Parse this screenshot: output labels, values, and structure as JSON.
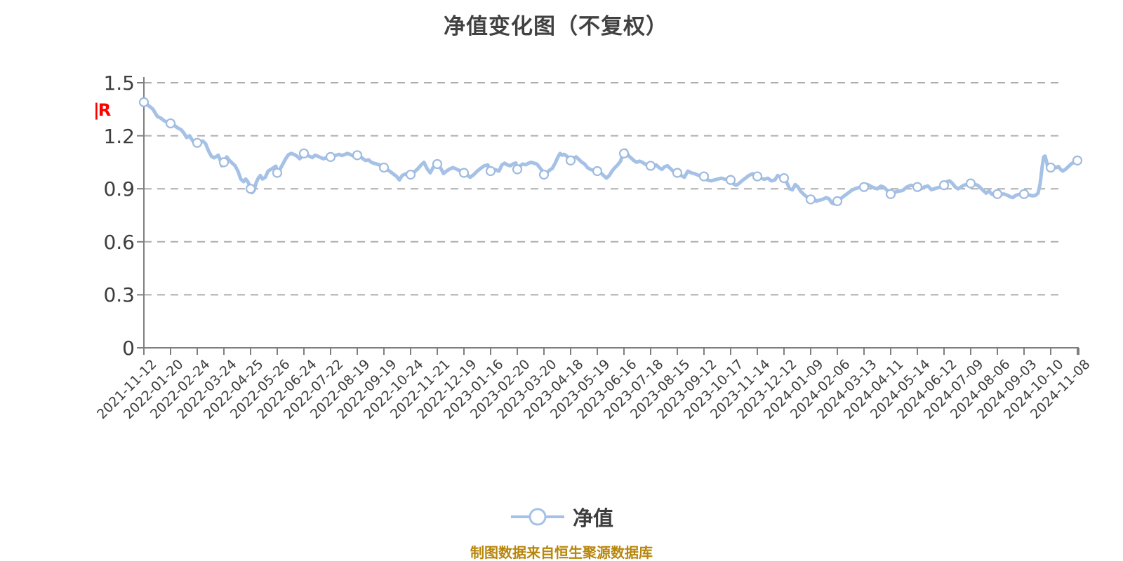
{
  "title": "净值变化图（不复权）",
  "red_mark": "|R",
  "legend": {
    "label": "净值"
  },
  "footer": "制图数据来自恒生聚源数据库",
  "colors": {
    "line": "#a6c1e6",
    "marker_fill": "#ffffff",
    "marker_stroke": "#9fbbdf",
    "grid": "#adadad",
    "axis": "#7f7f7f",
    "text": "#3d3d3d",
    "title": "#414141",
    "footer": "#b8860b",
    "red_mark": "#ff0000"
  },
  "chart_data": {
    "type": "line",
    "title": "净值变化图（不复权）",
    "series_name": "净值",
    "legend_position": "bottom center",
    "grid": "horizontal dashed",
    "ylim": [
      0,
      1.5
    ],
    "y_ticks": [
      1.5,
      1.2,
      0.9,
      0.6,
      0.3,
      0
    ],
    "y_tick_labels": [
      "1.5",
      "1.2",
      "0.9",
      "0.6",
      "0.3",
      "0"
    ],
    "x_labels": [
      "2021-11-12",
      "2022-01-20",
      "2022-02-24",
      "2022-03-24",
      "2022-04-25",
      "2022-05-26",
      "2022-06-24",
      "2022-07-22",
      "2022-08-19",
      "2022-09-19",
      "2022-10-24",
      "2022-11-21",
      "2022-12-19",
      "2023-01-16",
      "2023-02-20",
      "2023-03-20",
      "2023-04-18",
      "2023-05-19",
      "2023-06-16",
      "2023-07-18",
      "2023-08-15",
      "2023-09-12",
      "2023-10-17",
      "2023-11-14",
      "2023-12-12",
      "2024-01-09",
      "2024-02-06",
      "2024-03-13",
      "2024-04-11",
      "2024-05-14",
      "2024-06-12",
      "2024-07-09",
      "2024-08-06",
      "2024-09-03",
      "2024-10-10",
      "2024-11-08"
    ],
    "marker_values": [
      1.39,
      1.27,
      1.16,
      1.05,
      0.9,
      0.99,
      1.1,
      1.08,
      1.09,
      1.02,
      0.98,
      1.04,
      0.99,
      1.0,
      1.01,
      0.98,
      1.06,
      1.0,
      1.1,
      1.03,
      0.99,
      0.97,
      0.95,
      0.97,
      0.96,
      0.84,
      0.83,
      0.91,
      0.87,
      0.91,
      0.92,
      0.93,
      0.87,
      0.87,
      1.02,
      1.06
    ],
    "dense_points": [
      [
        205,
        1.39
      ],
      [
        212,
        1.37
      ],
      [
        218,
        1.35
      ],
      [
        224,
        1.31
      ],
      [
        229,
        1.3
      ],
      [
        234,
        1.285
      ],
      [
        239,
        1.275
      ],
      [
        243,
        1.27
      ],
      [
        248,
        1.26
      ],
      [
        253,
        1.245
      ],
      [
        258,
        1.235
      ],
      [
        262,
        1.215
      ],
      [
        266,
        1.19
      ],
      [
        270,
        1.2
      ],
      [
        274,
        1.175
      ],
      [
        278,
        1.155
      ],
      [
        281,
        1.16
      ],
      [
        285,
        1.165
      ],
      [
        289,
        1.17
      ],
      [
        293,
        1.155
      ],
      [
        297,
        1.115
      ],
      [
        301,
        1.085
      ],
      [
        305,
        1.075
      ],
      [
        308,
        1.082
      ],
      [
        311,
        1.09
      ],
      [
        314,
        1.06
      ],
      [
        316,
        1.03
      ],
      [
        319,
        1.05
      ],
      [
        323,
        1.08
      ],
      [
        327,
        1.06
      ],
      [
        331,
        1.045
      ],
      [
        335,
        1.03
      ],
      [
        339,
        1.0
      ],
      [
        343,
        0.955
      ],
      [
        347,
        0.94
      ],
      [
        350,
        0.955
      ],
      [
        353,
        0.94
      ],
      [
        355,
        0.925
      ],
      [
        357,
        0.9
      ],
      [
        359,
        0.878
      ],
      [
        362,
        0.89
      ],
      [
        365,
        0.935
      ],
      [
        368,
        0.96
      ],
      [
        371,
        0.975
      ],
      [
        374,
        0.955
      ],
      [
        378,
        0.965
      ],
      [
        382,
        1.0
      ],
      [
        386,
        1.01
      ],
      [
        390,
        1.02
      ],
      [
        393,
        1.028
      ],
      [
        395,
        0.99
      ],
      [
        399,
        1.012
      ],
      [
        403,
        1.04
      ],
      [
        407,
        1.07
      ],
      [
        411,
        1.093
      ],
      [
        415,
        1.1
      ],
      [
        419,
        1.094
      ],
      [
        423,
        1.085
      ],
      [
        427,
        1.07
      ],
      [
        430,
        1.082
      ],
      [
        433,
        1.1
      ],
      [
        437,
        1.09
      ],
      [
        441,
        1.084
      ],
      [
        445,
        1.076
      ],
      [
        449,
        1.09
      ],
      [
        453,
        1.084
      ],
      [
        457,
        1.076
      ],
      [
        461,
        1.07
      ],
      [
        465,
        1.076
      ],
      [
        468,
        1.08
      ],
      [
        471,
        1.08
      ],
      [
        475,
        1.086
      ],
      [
        479,
        1.09
      ],
      [
        483,
        1.095
      ],
      [
        487,
        1.088
      ],
      [
        491,
        1.094
      ],
      [
        495,
        1.1
      ],
      [
        499,
        1.094
      ],
      [
        503,
        1.086
      ],
      [
        506,
        1.08
      ],
      [
        509,
        1.09
      ],
      [
        513,
        1.084
      ],
      [
        517,
        1.07
      ],
      [
        521,
        1.06
      ],
      [
        525,
        1.064
      ],
      [
        529,
        1.05
      ],
      [
        533,
        1.044
      ],
      [
        537,
        1.04
      ],
      [
        541,
        1.034
      ],
      [
        545,
        1.025
      ],
      [
        547,
        1.02
      ],
      [
        551,
        1.01
      ],
      [
        555,
        1.0
      ],
      [
        560,
        0.985
      ],
      [
        565,
        0.97
      ],
      [
        569,
        0.95
      ],
      [
        573,
        0.975
      ],
      [
        578,
        0.985
      ],
      [
        581,
        0.98
      ],
      [
        585,
        0.98
      ],
      [
        590,
        0.995
      ],
      [
        595,
        1.012
      ],
      [
        600,
        1.035
      ],
      [
        604,
        1.05
      ],
      [
        609,
        1.01
      ],
      [
        613,
        0.99
      ],
      [
        617,
        1.02
      ],
      [
        621,
        1.048
      ],
      [
        623,
        1.04
      ],
      [
        628,
        1.015
      ],
      [
        632,
        0.986
      ],
      [
        636,
        1.0
      ],
      [
        640,
        1.01
      ],
      [
        645,
        1.02
      ],
      [
        649,
        1.014
      ],
      [
        653,
        1.006
      ],
      [
        657,
        1.0
      ],
      [
        661,
        0.99
      ],
      [
        666,
        0.976
      ],
      [
        670,
        0.965
      ],
      [
        675,
        0.98
      ],
      [
        680,
        1.0
      ],
      [
        685,
        1.016
      ],
      [
        690,
        1.03
      ],
      [
        695,
        1.035
      ],
      [
        699,
        1.0
      ],
      [
        703,
        1.012
      ],
      [
        707,
        1.006
      ],
      [
        711,
        1.0
      ],
      [
        715,
        1.035
      ],
      [
        719,
        1.045
      ],
      [
        723,
        1.035
      ],
      [
        727,
        1.03
      ],
      [
        731,
        1.04
      ],
      [
        735,
        1.046
      ],
      [
        737,
        1.01
      ],
      [
        741,
        1.03
      ],
      [
        745,
        1.04
      ],
      [
        749,
        1.036
      ],
      [
        753,
        1.045
      ],
      [
        757,
        1.05
      ],
      [
        761,
        1.045
      ],
      [
        765,
        1.04
      ],
      [
        769,
        1.02
      ],
      [
        772,
        1.005
      ],
      [
        775,
        0.98
      ],
      [
        779,
        0.99
      ],
      [
        783,
        1.005
      ],
      [
        787,
        1.016
      ],
      [
        791,
        1.045
      ],
      [
        795,
        1.08
      ],
      [
        798,
        1.1
      ],
      [
        801,
        1.09
      ],
      [
        804,
        1.095
      ],
      [
        807,
        1.086
      ],
      [
        810,
        1.075
      ],
      [
        813,
        1.06
      ],
      [
        817,
        1.075
      ],
      [
        821,
        1.08
      ],
      [
        825,
        1.065
      ],
      [
        829,
        1.05
      ],
      [
        833,
        1.04
      ],
      [
        837,
        1.02
      ],
      [
        841,
        1.01
      ],
      [
        845,
        1.005
      ],
      [
        851,
        1.0
      ],
      [
        856,
        0.99
      ],
      [
        860,
        0.975
      ],
      [
        864,
        0.96
      ],
      [
        868,
        0.975
      ],
      [
        872,
        1.0
      ],
      [
        876,
        1.02
      ],
      [
        880,
        1.035
      ],
      [
        884,
        1.055
      ],
      [
        887,
        1.09
      ],
      [
        889,
        1.1
      ],
      [
        891,
        1.12
      ],
      [
        893,
        1.105
      ],
      [
        896,
        1.085
      ],
      [
        899,
        1.075
      ],
      [
        903,
        1.06
      ],
      [
        907,
        1.05
      ],
      [
        911,
        1.056
      ],
      [
        915,
        1.05
      ],
      [
        919,
        1.04
      ],
      [
        923,
        1.03
      ],
      [
        927,
        1.03
      ],
      [
        931,
        1.024
      ],
      [
        935,
        1.035
      ],
      [
        939,
        1.02
      ],
      [
        943,
        1.01
      ],
      [
        947,
        1.025
      ],
      [
        951,
        1.03
      ],
      [
        955,
        1.015
      ],
      [
        959,
        1.0
      ],
      [
        962,
        0.995
      ],
      [
        965,
        0.99
      ],
      [
        970,
        0.976
      ],
      [
        975,
        0.965
      ],
      [
        980,
        1.0
      ],
      [
        985,
        0.99
      ],
      [
        990,
        0.985
      ],
      [
        995,
        0.976
      ],
      [
        1000,
        0.975
      ],
      [
        1003,
        0.97
      ],
      [
        1008,
        0.95
      ],
      [
        1013,
        0.945
      ],
      [
        1018,
        0.95
      ],
      [
        1023,
        0.955
      ],
      [
        1028,
        0.96
      ],
      [
        1033,
        0.954
      ],
      [
        1037,
        0.95
      ],
      [
        1041,
        0.95
      ],
      [
        1045,
        0.928
      ],
      [
        1049,
        0.92
      ],
      [
        1053,
        0.93
      ],
      [
        1057,
        0.945
      ],
      [
        1062,
        0.96
      ],
      [
        1067,
        0.975
      ],
      [
        1072,
        0.985
      ],
      [
        1076,
        0.98
      ],
      [
        1079,
        0.97
      ],
      [
        1084,
        0.96
      ],
      [
        1089,
        0.954
      ],
      [
        1094,
        0.96
      ],
      [
        1099,
        0.945
      ],
      [
        1104,
        0.95
      ],
      [
        1108,
        0.975
      ],
      [
        1113,
        0.965
      ],
      [
        1117,
        0.96
      ],
      [
        1121,
        0.935
      ],
      [
        1125,
        0.9
      ],
      [
        1129,
        0.894
      ],
      [
        1133,
        0.924
      ],
      [
        1137,
        0.91
      ],
      [
        1141,
        0.885
      ],
      [
        1146,
        0.865
      ],
      [
        1151,
        0.85
      ],
      [
        1155,
        0.84
      ],
      [
        1159,
        0.846
      ],
      [
        1163,
        0.83
      ],
      [
        1167,
        0.835
      ],
      [
        1172,
        0.84
      ],
      [
        1177,
        0.85
      ],
      [
        1181,
        0.844
      ],
      [
        1185,
        0.82
      ],
      [
        1189,
        0.815
      ],
      [
        1193,
        0.83
      ],
      [
        1198,
        0.845
      ],
      [
        1203,
        0.86
      ],
      [
        1208,
        0.875
      ],
      [
        1213,
        0.89
      ],
      [
        1218,
        0.9
      ],
      [
        1223,
        0.906
      ],
      [
        1227,
        0.91
      ],
      [
        1231,
        0.91
      ],
      [
        1236,
        0.924
      ],
      [
        1240,
        0.915
      ],
      [
        1245,
        0.905
      ],
      [
        1250,
        0.9
      ],
      [
        1255,
        0.915
      ],
      [
        1259,
        0.91
      ],
      [
        1263,
        0.895
      ],
      [
        1266,
        0.885
      ],
      [
        1269,
        0.87
      ],
      [
        1274,
        0.88
      ],
      [
        1280,
        0.886
      ],
      [
        1286,
        0.89
      ],
      [
        1292,
        0.91
      ],
      [
        1298,
        0.92
      ],
      [
        1303,
        0.914
      ],
      [
        1307,
        0.91
      ],
      [
        1312,
        0.9
      ],
      [
        1317,
        0.91
      ],
      [
        1322,
        0.916
      ],
      [
        1327,
        0.895
      ],
      [
        1331,
        0.9
      ],
      [
        1336,
        0.906
      ],
      [
        1341,
        0.91
      ],
      [
        1345,
        0.92
      ],
      [
        1349,
        0.94
      ],
      [
        1353,
        0.945
      ],
      [
        1357,
        0.93
      ],
      [
        1361,
        0.91
      ],
      [
        1365,
        0.9
      ],
      [
        1369,
        0.91
      ],
      [
        1373,
        0.92
      ],
      [
        1378,
        0.925
      ],
      [
        1383,
        0.93
      ],
      [
        1388,
        0.925
      ],
      [
        1393,
        0.92
      ],
      [
        1397,
        0.905
      ],
      [
        1401,
        0.89
      ],
      [
        1405,
        0.875
      ],
      [
        1409,
        0.888
      ],
      [
        1413,
        0.87
      ],
      [
        1417,
        0.865
      ],
      [
        1421,
        0.87
      ],
      [
        1426,
        0.87
      ],
      [
        1431,
        0.87
      ],
      [
        1435,
        0.864
      ],
      [
        1439,
        0.855
      ],
      [
        1443,
        0.85
      ],
      [
        1447,
        0.862
      ],
      [
        1451,
        0.868
      ],
      [
        1455,
        0.868
      ],
      [
        1459,
        0.87
      ],
      [
        1463,
        0.87
      ],
      [
        1467,
        0.864
      ],
      [
        1471,
        0.86
      ],
      [
        1475,
        0.862
      ],
      [
        1479,
        0.875
      ],
      [
        1482,
        0.93
      ],
      [
        1485,
        1.03
      ],
      [
        1487,
        1.08
      ],
      [
        1489,
        1.085
      ],
      [
        1491,
        1.055
      ],
      [
        1493,
        1.02
      ],
      [
        1495,
        1.005
      ],
      [
        1497,
        1.02
      ],
      [
        1501,
        1.025
      ],
      [
        1505,
        1.02
      ],
      [
        1508,
        1.026
      ],
      [
        1511,
        1.01
      ],
      [
        1514,
        1.0
      ],
      [
        1518,
        1.01
      ],
      [
        1522,
        1.025
      ],
      [
        1526,
        1.04
      ],
      [
        1530,
        1.05
      ],
      [
        1535,
        1.06
      ]
    ]
  }
}
